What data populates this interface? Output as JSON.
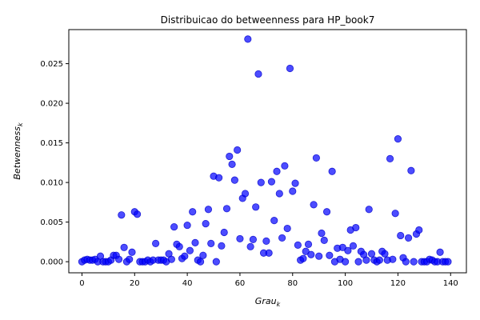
{
  "chart_data": {
    "type": "scatter",
    "title": "Distribuicao do betweenness para HP_book7",
    "xlabel": "Grau",
    "xlabel_sub": "k",
    "ylabel": "Betwenness",
    "ylabel_sub": "k",
    "xlim": [
      -5,
      146
    ],
    "ylim": [
      -0.0014,
      0.0293
    ],
    "xticks": [
      0,
      20,
      40,
      60,
      80,
      100,
      120,
      140
    ],
    "yticks": [
      0.0,
      0.005,
      0.01,
      0.015,
      0.02,
      0.025
    ],
    "ytick_labels": [
      "0.000",
      "0.005",
      "0.010",
      "0.015",
      "0.020",
      "0.025"
    ],
    "grid": false,
    "legend": "none",
    "marker_color": "#0000ff",
    "marker_edge": "#0000cc",
    "marker_opacity": 0.7,
    "series": [
      {
        "x": [
          0,
          1,
          2,
          3,
          4,
          5,
          6,
          7,
          8,
          9,
          10,
          11,
          12,
          13,
          14,
          15,
          16,
          17,
          18,
          19,
          20,
          21,
          22,
          23,
          24,
          25,
          26,
          27,
          28,
          29,
          30,
          31,
          32,
          33,
          34,
          35,
          36,
          37,
          38,
          39,
          40,
          41,
          42,
          43,
          44,
          45,
          46,
          47,
          48,
          49,
          50,
          51,
          52,
          53,
          54,
          55,
          56,
          57,
          58,
          59,
          60,
          61,
          62,
          63,
          64,
          65,
          66,
          67,
          68,
          69,
          70,
          71,
          72,
          73,
          74,
          75,
          76,
          77,
          78,
          79,
          80,
          81,
          82,
          83,
          84,
          85,
          86,
          87,
          88,
          89,
          90,
          91,
          92,
          93,
          94,
          95,
          96,
          97,
          98,
          99,
          100,
          101,
          102,
          103,
          104,
          105,
          106,
          107,
          108,
          109,
          110,
          111,
          112,
          113,
          114,
          115,
          116,
          117,
          118,
          119,
          120,
          121,
          122,
          123,
          124,
          125,
          126,
          127,
          128,
          129,
          130,
          131,
          132,
          133,
          134,
          135,
          136,
          137,
          138,
          139
        ],
        "y": [
          0.0,
          0.0002,
          0.0003,
          0.0002,
          0.0002,
          0.0003,
          0.0,
          0.0007,
          0.0,
          0.0,
          0.0,
          0.0002,
          0.0008,
          0.0008,
          0.0003,
          0.0059,
          0.0018,
          0.0,
          0.0003,
          0.0012,
          0.0063,
          0.006,
          0.0,
          0.0,
          0.0,
          0.0002,
          0.0,
          0.0002,
          0.0023,
          0.0002,
          0.0002,
          0.0002,
          0.0,
          0.001,
          0.0003,
          0.0044,
          0.0022,
          0.0019,
          0.0004,
          0.0007,
          0.0046,
          0.0014,
          0.0063,
          0.0024,
          0.0002,
          0.0,
          0.0008,
          0.0048,
          0.0066,
          0.0023,
          0.0108,
          0.0,
          0.0106,
          0.002,
          0.0037,
          0.0067,
          0.0133,
          0.0123,
          0.0103,
          0.0141,
          0.0029,
          0.008,
          0.0086,
          0.0281,
          0.0019,
          0.0028,
          0.0069,
          0.0237,
          0.01,
          0.0011,
          0.0026,
          0.0011,
          0.0101,
          0.0052,
          0.0114,
          0.0086,
          0.003,
          0.0121,
          0.0042,
          0.0244,
          0.0089,
          0.0099,
          0.0021,
          0.0002,
          0.0004,
          0.0013,
          0.0022,
          0.0009,
          0.0072,
          0.0131,
          0.0007,
          0.0036,
          0.0027,
          0.0063,
          0.0008,
          0.0114,
          0.0,
          0.0017,
          0.0003,
          0.0018,
          0.0,
          0.0014,
          0.004,
          0.002,
          0.0043,
          0.0,
          0.0013,
          0.0009,
          0.0002,
          0.0066,
          0.001,
          0.0002,
          0.0,
          0.0002,
          0.0013,
          0.001,
          0.0002,
          0.013,
          0.0003,
          0.0061,
          0.0155,
          0.0033,
          0.0005,
          0.0,
          0.003,
          0.0115,
          0.0,
          0.0035,
          0.004,
          0.0,
          0.0,
          0.0,
          0.0003,
          0.0002,
          0.0,
          0.0,
          0.0012,
          0.0,
          0.0,
          0.0
        ]
      }
    ]
  }
}
